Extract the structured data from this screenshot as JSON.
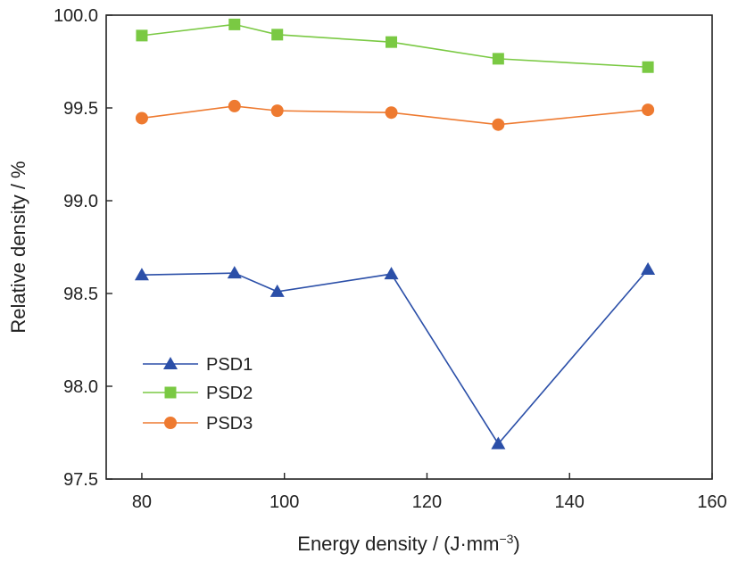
{
  "chart_data": {
    "type": "line",
    "xlabel": "Energy density / (J·mm",
    "xlabel_sup": "−3",
    "xlabel_close": ")",
    "ylabel": "Relative density / %",
    "xlim": [
      75,
      160
    ],
    "ylim": [
      97.5,
      100.0
    ],
    "xticks": [
      80,
      100,
      120,
      140,
      160
    ],
    "yticks": [
      97.5,
      98.0,
      98.5,
      99.0,
      99.5,
      100.0
    ],
    "xtick_labels": [
      "80",
      "100",
      "120",
      "140",
      "160"
    ],
    "ytick_labels": [
      "97.5",
      "98.0",
      "98.5",
      "99.0",
      "99.5",
      "100.0"
    ],
    "grid": false,
    "legend_position": "bottom-left",
    "x": [
      80,
      93,
      99,
      115,
      130,
      151
    ],
    "series": [
      {
        "name": "PSD1",
        "marker": "triangle",
        "color": "#2b4fa8",
        "values": [
          98.6,
          98.61,
          98.51,
          98.605,
          97.69,
          98.63
        ]
      },
      {
        "name": "PSD2",
        "marker": "square",
        "color": "#7ac943",
        "values": [
          99.89,
          99.95,
          99.895,
          99.855,
          99.765,
          99.72
        ]
      },
      {
        "name": "PSD3",
        "marker": "circle",
        "color": "#ee7a30",
        "values": [
          99.445,
          99.51,
          99.485,
          99.475,
          99.41,
          99.49
        ]
      }
    ]
  }
}
